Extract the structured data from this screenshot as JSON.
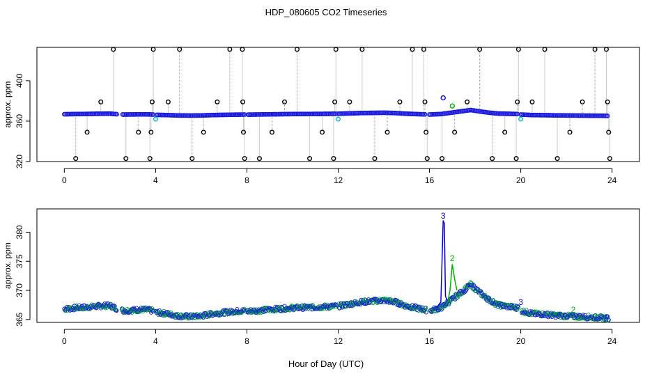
{
  "title": "HDP_080605  CO2 Timeseries",
  "xlabel": "Hour of Day (UTC)",
  "colors": {
    "series1": "#00b000",
    "series2": "#00a050",
    "series3": "#0000dd",
    "outlier": "#000000",
    "flagged": "#00bcd4",
    "drop_line": "#999999"
  },
  "chart_data": [
    {
      "type": "scatter",
      "title": "HDP_080605  CO2 Timeseries",
      "xlabel": "",
      "ylabel": "approx. ppm",
      "xlim": [
        -1.2,
        25.2
      ],
      "ylim": [
        320,
        433
      ],
      "xticks": [
        0,
        4,
        8,
        12,
        16,
        20,
        24
      ],
      "yticks": [
        320,
        360,
        400
      ],
      "baseline": [
        [
          0,
          366.8
        ],
        [
          0.5,
          367.0
        ],
        [
          1.0,
          367.1
        ],
        [
          1.5,
          367.3
        ],
        [
          2.0,
          367.4
        ],
        [
          2.2,
          367.0
        ],
        [
          2.6,
          366.5
        ],
        [
          3.0,
          366.6
        ],
        [
          3.5,
          366.7
        ],
        [
          3.9,
          366.5
        ],
        [
          4.0,
          366.2
        ],
        [
          4.5,
          366.0
        ],
        [
          5.0,
          365.6
        ],
        [
          5.5,
          365.5
        ],
        [
          6.0,
          365.6
        ],
        [
          6.5,
          366.0
        ],
        [
          7.0,
          366.2
        ],
        [
          7.5,
          366.4
        ],
        [
          7.9,
          366.5
        ],
        [
          8.0,
          366.4
        ],
        [
          9.0,
          366.7
        ],
        [
          10.0,
          367.0
        ],
        [
          11.0,
          367.1
        ],
        [
          12.0,
          367.3
        ],
        [
          13.0,
          368.0
        ],
        [
          14.0,
          368.3
        ],
        [
          14.5,
          368.0
        ],
        [
          15.0,
          367.3
        ],
        [
          15.5,
          366.9
        ],
        [
          16.0,
          366.5
        ],
        [
          16.5,
          367.0
        ],
        [
          17.0,
          368.5
        ],
        [
          17.5,
          370.0
        ],
        [
          17.8,
          371.0
        ],
        [
          18.2,
          369.6
        ],
        [
          18.6,
          368.4
        ],
        [
          19.0,
          367.5
        ],
        [
          19.5,
          367.2
        ],
        [
          19.9,
          367.0
        ],
        [
          20.0,
          366.5
        ],
        [
          20.5,
          366.0
        ],
        [
          21.0,
          365.9
        ],
        [
          21.5,
          365.7
        ],
        [
          22.0,
          365.6
        ],
        [
          22.5,
          365.5
        ],
        [
          23.0,
          365.4
        ],
        [
          23.5,
          365.3
        ],
        [
          23.8,
          365.2
        ]
      ],
      "gaps": [
        [
          2.3,
          2.5
        ],
        [
          3.92,
          4.0
        ],
        [
          7.9,
          8.0
        ],
        [
          11.92,
          12.0
        ],
        [
          15.85,
          16.0
        ],
        [
          19.9,
          20.0
        ]
      ],
      "spikes": [
        [
          0.5,
          323
        ],
        [
          1.0,
          349
        ],
        [
          1.6,
          379
        ],
        [
          2.15,
          431
        ],
        [
          2.7,
          323
        ],
        [
          3.25,
          349
        ],
        [
          3.75,
          323
        ],
        [
          3.8,
          349
        ],
        [
          3.85,
          379
        ],
        [
          3.9,
          431
        ],
        [
          4.55,
          379
        ],
        [
          5.05,
          431
        ],
        [
          5.6,
          323
        ],
        [
          6.1,
          349
        ],
        [
          6.7,
          379
        ],
        [
          7.25,
          431
        ],
        [
          7.8,
          431
        ],
        [
          7.82,
          379
        ],
        [
          7.85,
          349
        ],
        [
          7.9,
          323
        ],
        [
          8.55,
          323
        ],
        [
          9.1,
          349
        ],
        [
          9.65,
          379
        ],
        [
          10.2,
          431
        ],
        [
          10.75,
          323
        ],
        [
          11.3,
          349
        ],
        [
          11.8,
          323
        ],
        [
          11.85,
          379
        ],
        [
          11.9,
          431
        ],
        [
          12.5,
          379
        ],
        [
          13.05,
          431
        ],
        [
          13.6,
          323
        ],
        [
          14.15,
          349
        ],
        [
          14.7,
          379
        ],
        [
          15.25,
          431
        ],
        [
          15.75,
          431
        ],
        [
          15.8,
          379
        ],
        [
          15.85,
          349
        ],
        [
          15.9,
          323
        ],
        [
          16.55,
          323
        ],
        [
          17.1,
          349
        ],
        [
          17.65,
          379
        ],
        [
          18.2,
          431
        ],
        [
          18.75,
          323
        ],
        [
          19.3,
          349
        ],
        [
          19.8,
          323
        ],
        [
          19.85,
          379
        ],
        [
          19.9,
          431
        ],
        [
          20.5,
          379
        ],
        [
          21.05,
          431
        ],
        [
          21.6,
          323
        ],
        [
          22.15,
          349
        ],
        [
          22.7,
          379
        ],
        [
          23.25,
          431
        ],
        [
          23.75,
          431
        ],
        [
          23.8,
          379
        ],
        [
          23.85,
          349
        ],
        [
          23.9,
          323
        ]
      ],
      "flagged_points": [
        [
          4.0,
          362
        ],
        [
          12.0,
          362
        ],
        [
          20.0,
          362
        ]
      ],
      "blue_highlight": [
        [
          16.6,
          383
        ]
      ],
      "green_points": [
        [
          17.0,
          375
        ]
      ]
    },
    {
      "type": "line",
      "title": "",
      "xlabel": "Hour of Day (UTC)",
      "ylabel": "approx. ppm",
      "xlim": [
        -1.2,
        25.2
      ],
      "ylim": [
        364.5,
        384
      ],
      "xticks": [
        0,
        4,
        8,
        12,
        16,
        20,
        24
      ],
      "yticks": [
        365,
        370,
        375,
        380
      ],
      "series": [
        {
          "name": "3",
          "color": "#0000dd",
          "points": [
            [
              16.3,
              367
            ],
            [
              16.5,
              368
            ],
            [
              16.6,
              382
            ],
            [
              16.65,
              381.5
            ],
            [
              16.7,
              369
            ],
            [
              16.8,
              368
            ]
          ]
        },
        {
          "name": "2",
          "color": "#00b000",
          "points": [
            [
              16.8,
              368
            ],
            [
              16.9,
              370
            ],
            [
              17.0,
              374.5
            ],
            [
              17.1,
              372
            ],
            [
              17.2,
              370
            ]
          ]
        }
      ],
      "labels": [
        {
          "text": "3",
          "x": 16.6,
          "y": 382.3,
          "color": "#0000dd"
        },
        {
          "text": "2",
          "x": 17.0,
          "y": 375.0,
          "color": "#00b000"
        },
        {
          "text": "3",
          "x": 20.0,
          "y": 367.5,
          "color": "#0000dd"
        },
        {
          "text": "2",
          "x": 22.3,
          "y": 366.2,
          "color": "#00b000"
        }
      ]
    }
  ]
}
